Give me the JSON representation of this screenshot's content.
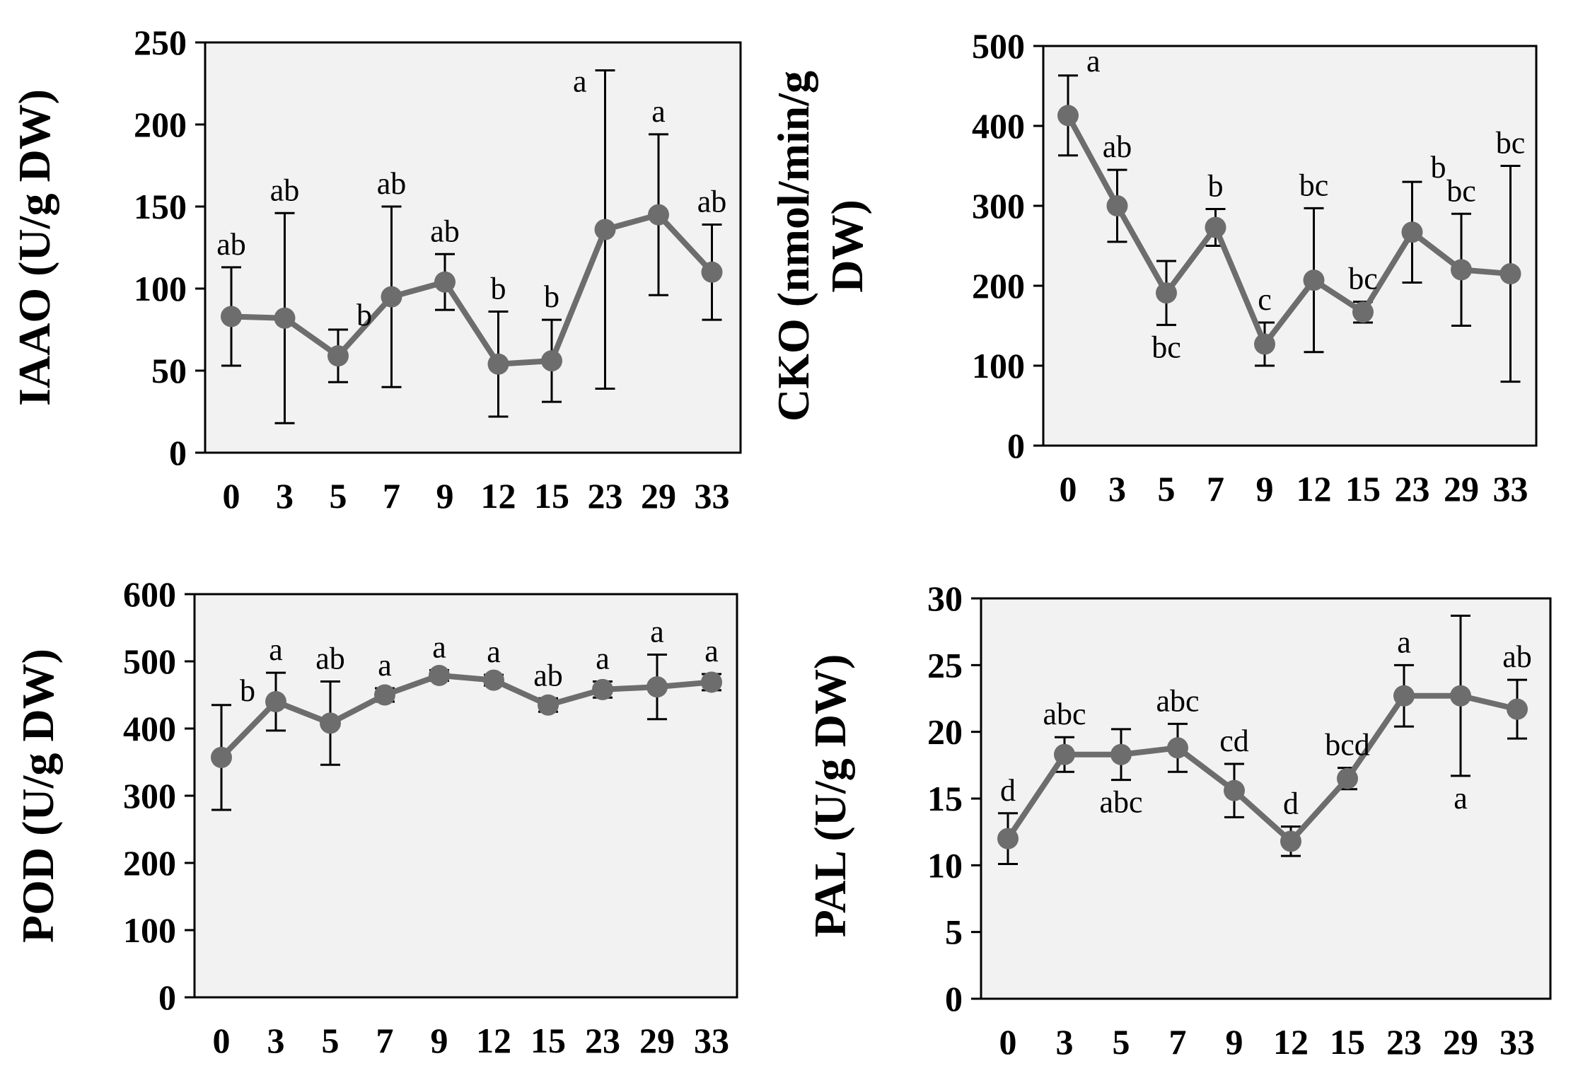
{
  "colors": {
    "series": "#6d6d6d",
    "plot_background": "#f2f2f2",
    "frame": "#000000",
    "error_bar": "#000000"
  },
  "chart_data": [
    {
      "type": "line",
      "id": "iaao",
      "ylabel": "IAAO (U/g DW)",
      "ylim": [
        0,
        250
      ],
      "yticks": [
        0,
        50,
        100,
        150,
        200,
        250
      ],
      "categories": [
        "0",
        "3",
        "5",
        "7",
        "9",
        "12",
        "15",
        "23",
        "29",
        "33"
      ],
      "values": [
        83,
        82,
        59,
        95,
        104,
        54,
        56,
        136,
        145,
        110
      ],
      "errors": [
        30,
        64,
        16,
        55,
        17,
        32,
        25,
        97,
        49,
        29
      ],
      "labels": [
        "ab",
        "ab",
        "b",
        "ab",
        "ab",
        "b",
        "b",
        "a",
        "a",
        "ab"
      ],
      "label_positions": [
        "above",
        "above",
        "above-right",
        "above",
        "above",
        "above",
        "above",
        "above-left",
        "above",
        "above"
      ]
    },
    {
      "type": "line",
      "id": "cko",
      "ylabel": "CKO (nmol/min/g DW)",
      "ylabel_lines": [
        "CKO (nmol/min/g",
        "DW)"
      ],
      "ylim": [
        0,
        500
      ],
      "yticks": [
        0,
        100,
        200,
        300,
        400,
        500
      ],
      "categories": [
        "0",
        "3",
        "5",
        "7",
        "9",
        "12",
        "15",
        "23",
        "29",
        "33"
      ],
      "values": [
        413,
        300,
        191,
        273,
        127,
        207,
        167,
        267,
        220,
        215
      ],
      "errors": [
        50,
        45,
        40,
        23,
        27,
        90,
        13,
        63,
        70,
        135
      ],
      "labels": [
        "a",
        "ab",
        "bc",
        "b",
        "c",
        "bc",
        "bc",
        "b",
        "bc",
        "bc"
      ],
      "label_positions": [
        "above-right",
        "above",
        "below",
        "above",
        "above",
        "above",
        "above",
        "above-right",
        "above",
        "above"
      ]
    },
    {
      "type": "line",
      "id": "pod",
      "ylabel": "POD (U/g DW)",
      "ylim": [
        0,
        600
      ],
      "yticks": [
        0,
        100,
        200,
        300,
        400,
        500,
        600
      ],
      "categories": [
        "0",
        "3",
        "5",
        "7",
        "9",
        "12",
        "15",
        "23",
        "29",
        "33"
      ],
      "values": [
        357,
        440,
        408,
        450,
        479,
        472,
        435,
        458,
        462,
        469
      ],
      "errors": [
        78,
        43,
        62,
        10,
        8,
        8,
        10,
        12,
        48,
        12
      ],
      "labels": [
        "b",
        "a",
        "ab",
        "a",
        "a",
        "a",
        "ab",
        "a",
        "a",
        "a"
      ],
      "label_positions": [
        "above-right",
        "above",
        "above",
        "above",
        "above",
        "above",
        "above",
        "above",
        "above",
        "above"
      ]
    },
    {
      "type": "line",
      "id": "pal",
      "ylabel": "PAL (U/g DW)",
      "ylim": [
        0,
        30
      ],
      "yticks": [
        0,
        5,
        10,
        15,
        20,
        25,
        30
      ],
      "categories": [
        "0",
        "3",
        "5",
        "7",
        "9",
        "12",
        "15",
        "23",
        "29",
        "33"
      ],
      "values": [
        12.0,
        18.3,
        18.3,
        18.8,
        15.6,
        11.8,
        16.5,
        22.7,
        22.7,
        21.7
      ],
      "errors": [
        1.9,
        1.3,
        1.9,
        1.8,
        2.0,
        1.1,
        0.8,
        2.3,
        6.0,
        2.2
      ],
      "labels": [
        "d",
        "abc",
        "abc",
        "abc",
        "cd",
        "d",
        "bcd",
        "a",
        "a",
        "ab"
      ],
      "label_positions": [
        "above",
        "above",
        "below",
        "above",
        "above",
        "above",
        "above",
        "above",
        "below",
        "above"
      ]
    }
  ]
}
